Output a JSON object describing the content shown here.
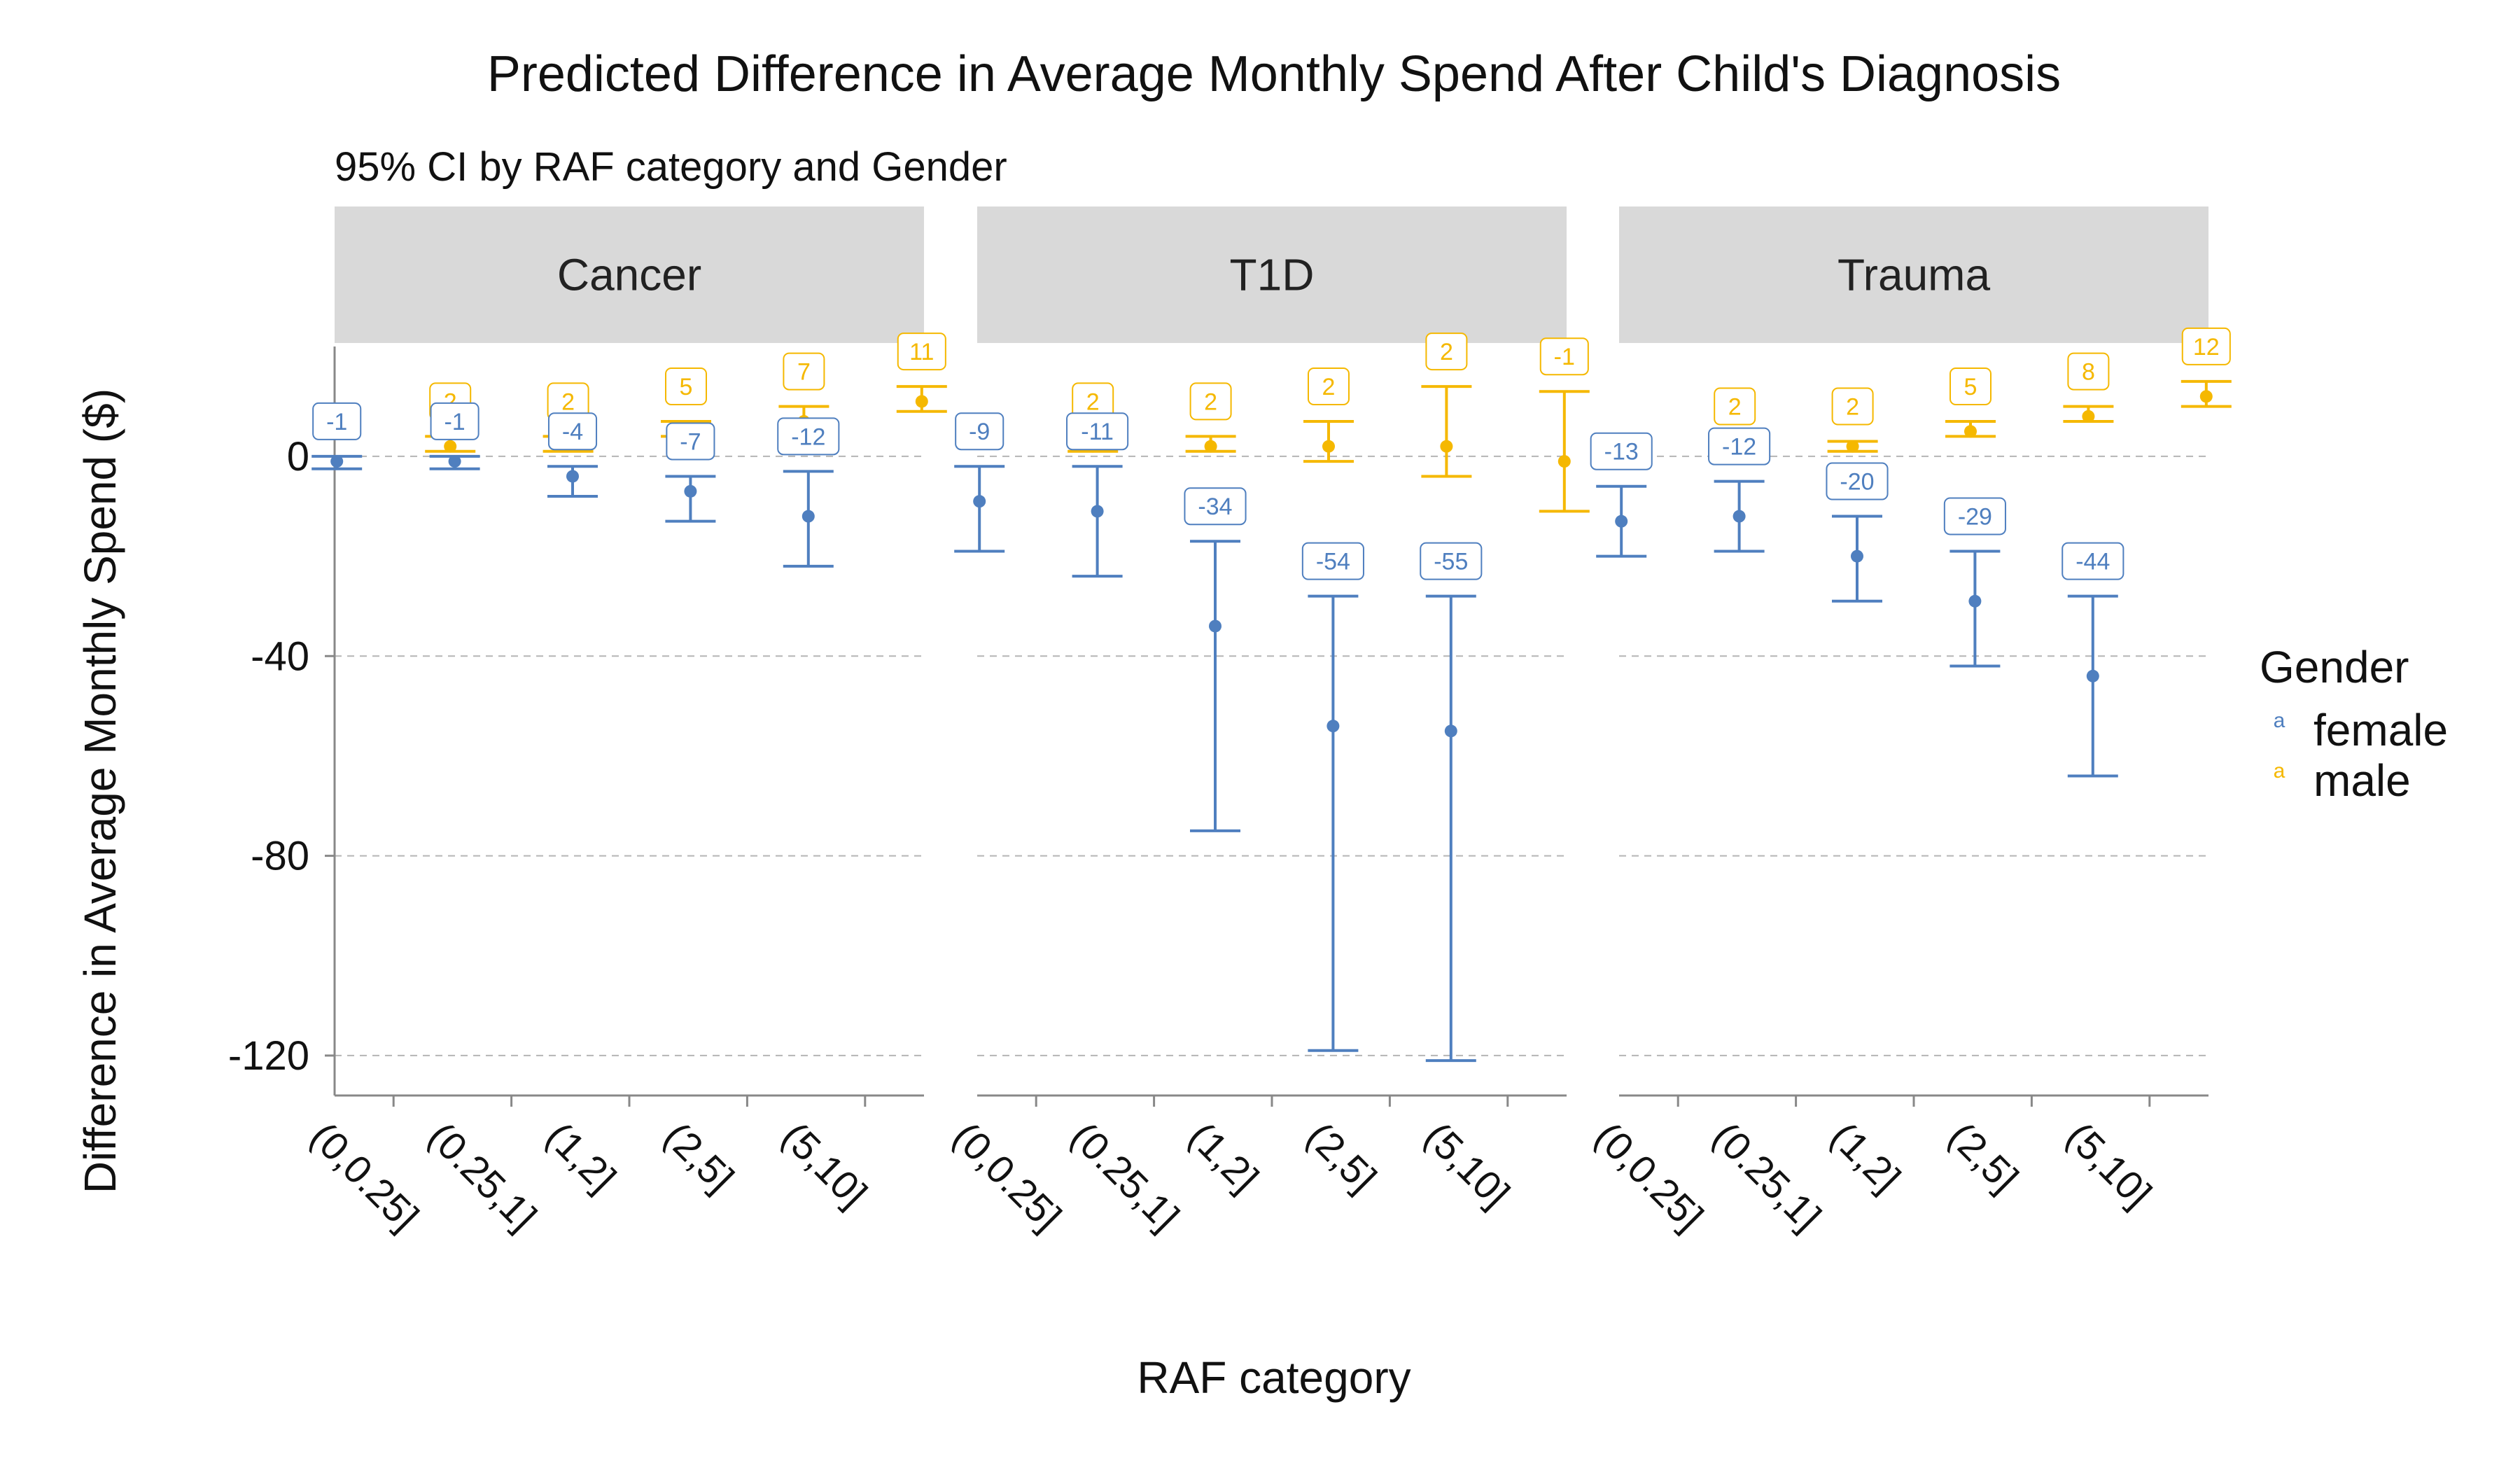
{
  "chart_data": {
    "type": "errorbar",
    "title": "Predicted Difference in Average Monthly Spend After Child's Diagnosis",
    "subtitle": "95% CI by RAF category and Gender",
    "xlabel": "RAF category",
    "ylabel": "Difference in Average Monthly Spend ($)",
    "ylim": [
      -128,
      22
    ],
    "yticks": [
      0,
      -40,
      -80,
      -120
    ],
    "ytick_labels": [
      "0",
      "-40",
      "-80",
      "-120"
    ],
    "grid": "horizontal-dashed",
    "categories": [
      "(0,0.25]",
      "(0.25,1]",
      "(1,2]",
      "(2,5]",
      "(5,10]"
    ],
    "legend": {
      "title": "Gender",
      "position": "right",
      "key_glyph": "a",
      "entries": [
        {
          "label": "female",
          "color": "#4f7fbf"
        },
        {
          "label": "male",
          "color": "#f5b800"
        }
      ]
    },
    "panels": [
      {
        "name": "Cancer",
        "series": [
          {
            "name": "female",
            "color": "#4f7fbf",
            "values": [
              -1,
              -1,
              -4,
              -7,
              -12
            ],
            "lower": [
              -2.5,
              -2.5,
              -8,
              -13,
              -22
            ],
            "upper": [
              0,
              0,
              -2,
              -4,
              -3
            ],
            "labels": [
              "-1",
              "-1",
              "-4",
              "-7",
              "-12"
            ]
          },
          {
            "name": "male",
            "color": "#f5b800",
            "values": [
              2,
              2,
              5,
              7,
              11
            ],
            "lower": [
              1,
              1,
              4,
              6,
              9
            ],
            "upper": [
              4,
              4,
              7,
              10,
              14
            ],
            "labels": [
              "2",
              "2",
              "5",
              "7",
              "11"
            ]
          }
        ]
      },
      {
        "name": "T1D",
        "series": [
          {
            "name": "female",
            "color": "#4f7fbf",
            "values": [
              -9,
              -11,
              -34,
              -54,
              -55
            ],
            "lower": [
              -19,
              -24,
              -75,
              -119,
              -121
            ],
            "upper": [
              -2,
              -2,
              -17,
              -28,
              -28
            ],
            "labels": [
              "-9",
              "-11",
              "-34",
              "-54",
              "-55"
            ]
          },
          {
            "name": "male",
            "color": "#f5b800",
            "values": [
              2,
              2,
              2,
              2,
              -1
            ],
            "lower": [
              1,
              1,
              -1,
              -4,
              -11
            ],
            "upper": [
              4,
              4,
              7,
              14,
              13
            ],
            "labels": [
              "2",
              "2",
              "2",
              "2",
              "-1"
            ]
          }
        ]
      },
      {
        "name": "Trauma",
        "series": [
          {
            "name": "female",
            "color": "#4f7fbf",
            "values": [
              -13,
              -12,
              -20,
              -29,
              -44
            ],
            "lower": [
              -20,
              -19,
              -29,
              -42,
              -64
            ],
            "upper": [
              -6,
              -5,
              -12,
              -19,
              -28
            ],
            "labels": [
              "-13",
              "-12",
              "-20",
              "-29",
              "-44"
            ]
          },
          {
            "name": "male",
            "color": "#f5b800",
            "values": [
              2,
              2,
              5,
              8,
              12
            ],
            "lower": [
              1,
              1,
              4,
              7,
              10
            ],
            "upper": [
              3,
              3,
              7,
              10,
              15
            ],
            "labels": [
              "2",
              "2",
              "5",
              "8",
              "12"
            ]
          }
        ]
      }
    ]
  }
}
